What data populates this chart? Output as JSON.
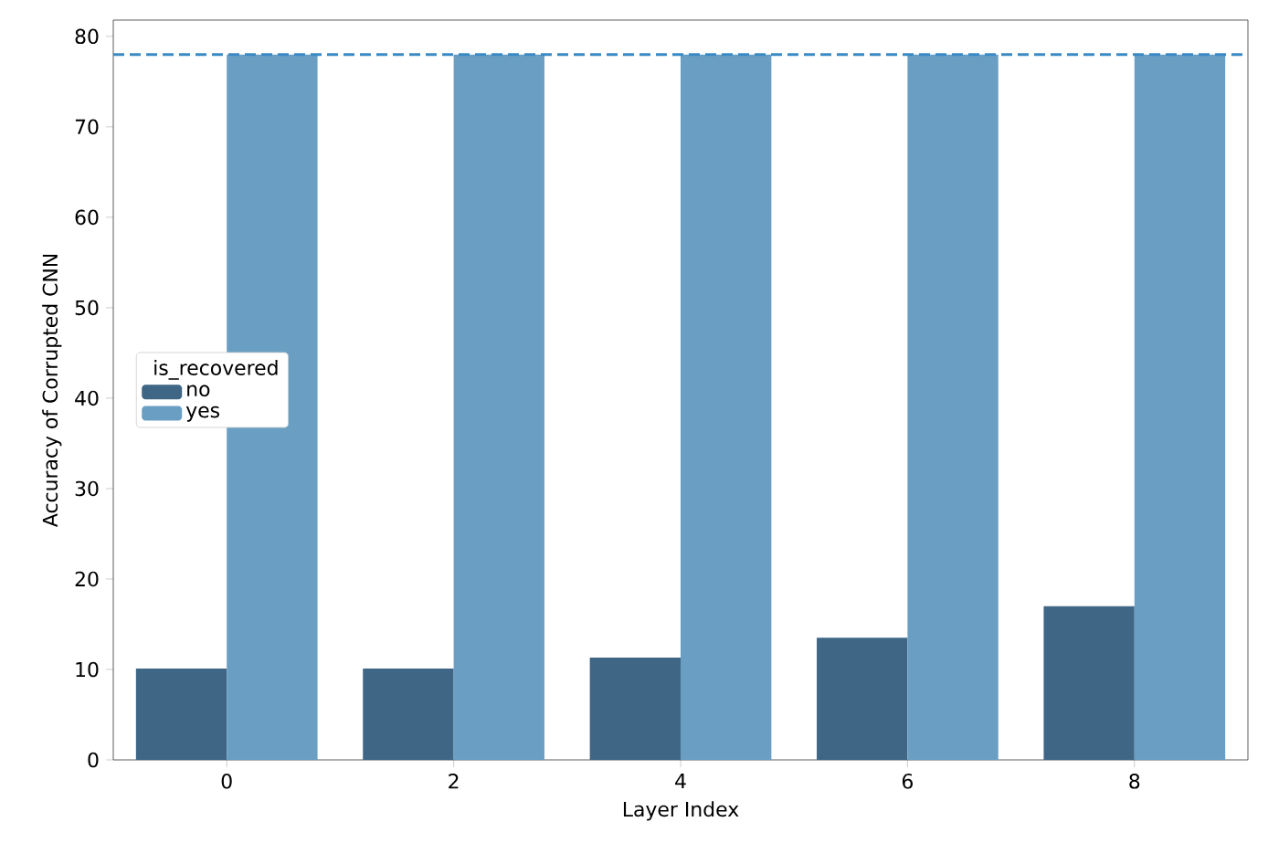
{
  "chart_data": {
    "type": "bar",
    "xlabel": "Layer Index",
    "ylabel": "Accuracy of Corrupted CNN",
    "legend_title": "is_recovered",
    "categories": [
      "0",
      "2",
      "4",
      "6",
      "8"
    ],
    "series": [
      {
        "name": "no",
        "color": "#3f6685",
        "values": [
          10.1,
          10.1,
          11.3,
          13.5,
          17.0
        ]
      },
      {
        "name": "yes",
        "color": "#6a9fc3",
        "values": [
          78.0,
          78.0,
          78.0,
          78.0,
          78.0
        ]
      }
    ],
    "ylim": [
      0,
      81.8
    ],
    "yticks": [
      0,
      10,
      20,
      30,
      40,
      50,
      60,
      70,
      80
    ],
    "ref_lines": [
      {
        "axis": "y",
        "value": 78.0,
        "color": "#3a8bc5",
        "line_style": "dashed"
      }
    ],
    "grid": false,
    "legend": "left"
  }
}
